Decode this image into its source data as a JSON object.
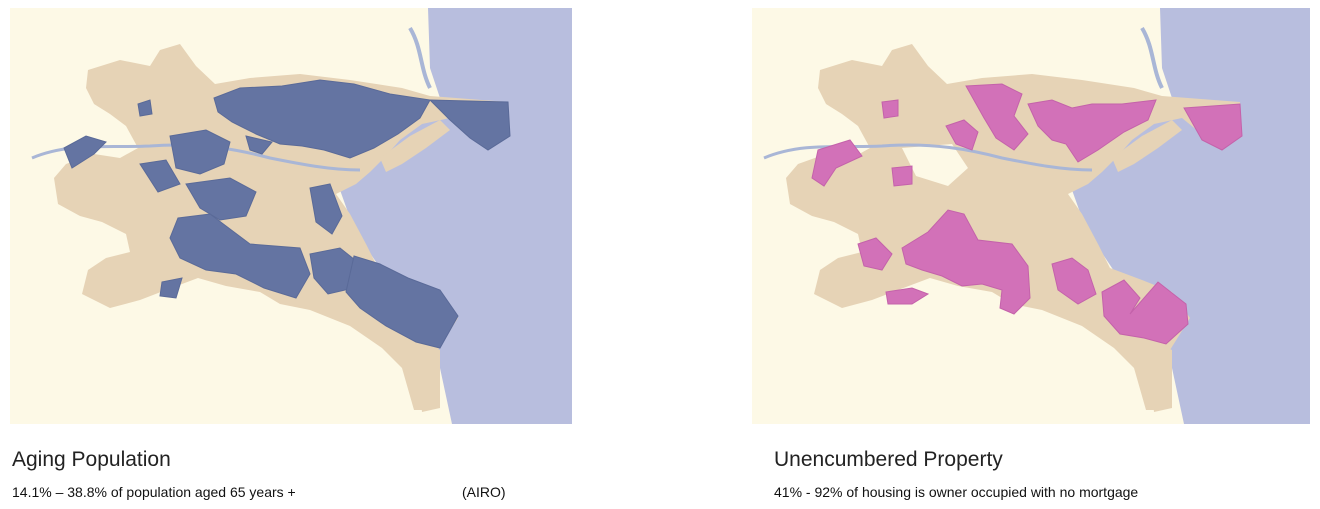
{
  "colors": {
    "background": "#fdf9e6",
    "land": "#e6d3b6",
    "sea": "#b8bede",
    "river": "#a9b6d6",
    "aging_highlight": "#6474a2",
    "unencumbered_highlight": "#d271b8"
  },
  "maps": [
    {
      "title": "Aging Population",
      "caption": "14.1% – 38.8% of population aged 65 years +",
      "source": "(AIRO)"
    },
    {
      "title": "Unencumbered Property",
      "caption": "41% - 92% of housing is owner occupied with no mortgage"
    }
  ]
}
